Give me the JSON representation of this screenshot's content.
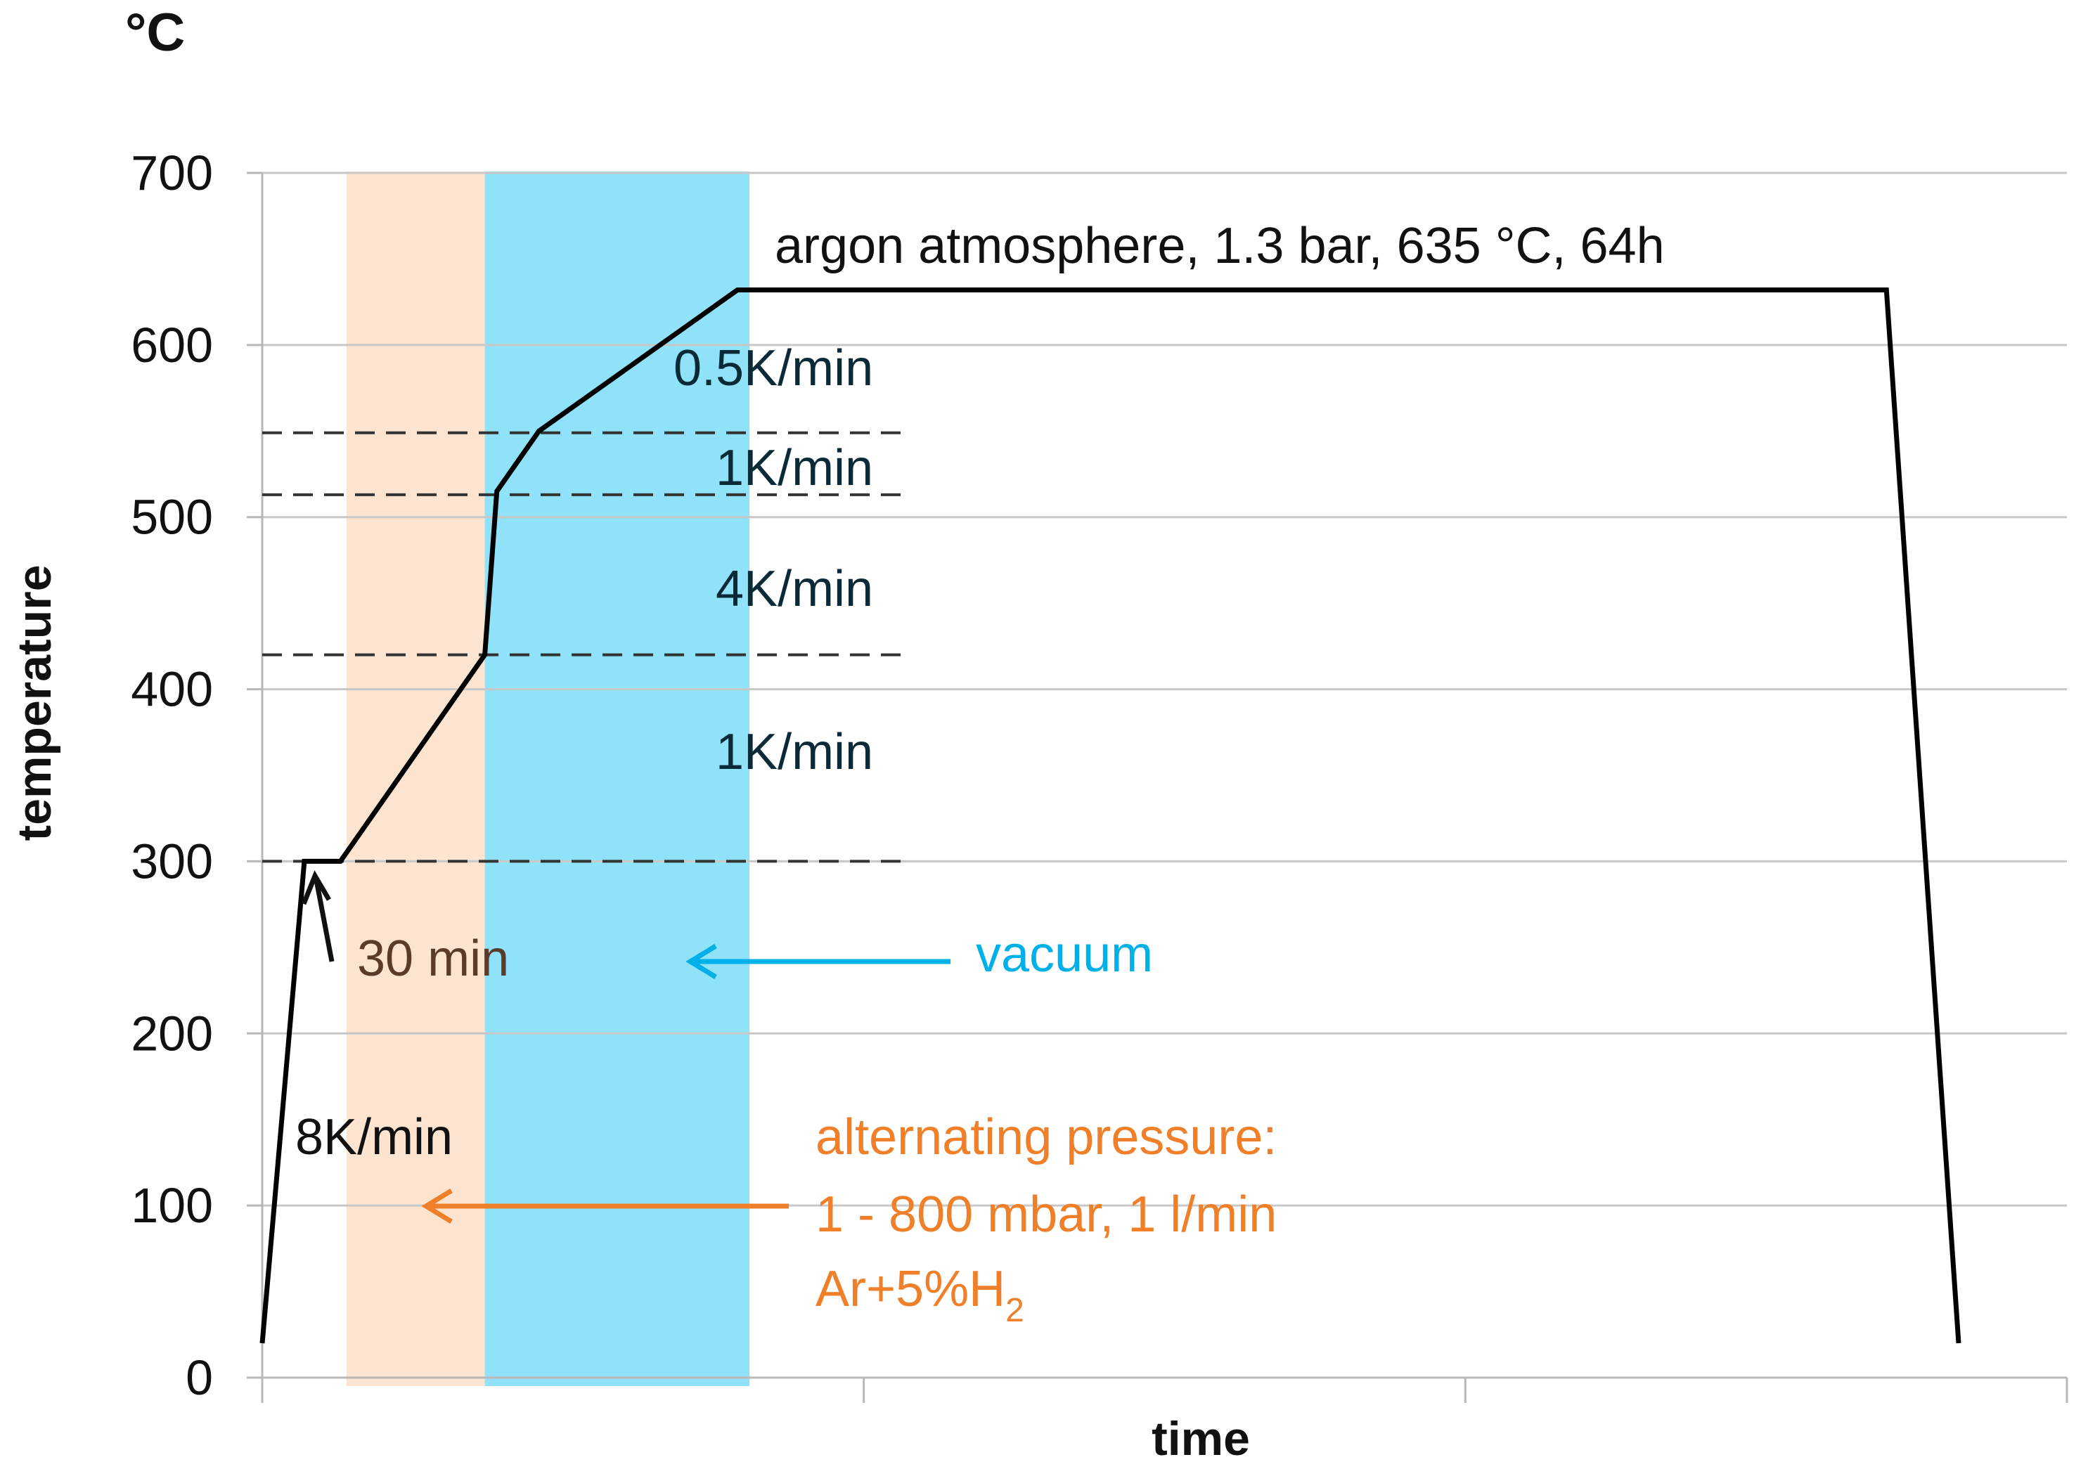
{
  "chart_data": {
    "type": "line",
    "unit_label": "°C",
    "xlabel": "time",
    "ylabel": "temperature",
    "ylim": [
      0,
      700
    ],
    "yticks": [
      0,
      100,
      200,
      300,
      400,
      500,
      600,
      700
    ],
    "xlim": [
      0,
      3
    ],
    "xticks": [
      0,
      1,
      2,
      3
    ],
    "grid": true,
    "series": [
      {
        "x": [
          0.0,
          0.07,
          0.13,
          0.37,
          0.39,
          0.46,
          0.79,
          2.7,
          2.82
        ],
        "y": [
          20,
          300,
          300,
          420,
          515,
          550,
          632,
          632,
          20
        ]
      }
    ],
    "reference_lines": [
      300,
      420,
      513,
      549
    ],
    "bands": [
      {
        "x0": 0.14,
        "x1": 0.37,
        "color": "#fce4d0"
      },
      {
        "x0": 0.37,
        "x1": 0.81,
        "color": "#8fe2f7"
      }
    ],
    "annotations": {
      "plateau": "argon atmosphere, 1.3 bar, 635 °C, 64h",
      "rate_05": "0.5K/min",
      "rate_1_upper": "1K/min",
      "rate_4": "4K/min",
      "rate_1_lower": "1K/min",
      "hold": "30 min",
      "vacuum": "vacuum",
      "heating": "8K/min",
      "pressure_line1": "alternating pressure:",
      "pressure_line2": "1 - 800 mbar, 1 l/min",
      "pressure_line3_main": "Ar+5%H",
      "pressure_line3_sub": "2"
    },
    "colors": {
      "curve": "#000000",
      "vacuum": "#00b0e8",
      "pressure": "#f07f2a",
      "hold_text": "#5b3b2b",
      "grid": "#c8c8c8"
    }
  }
}
